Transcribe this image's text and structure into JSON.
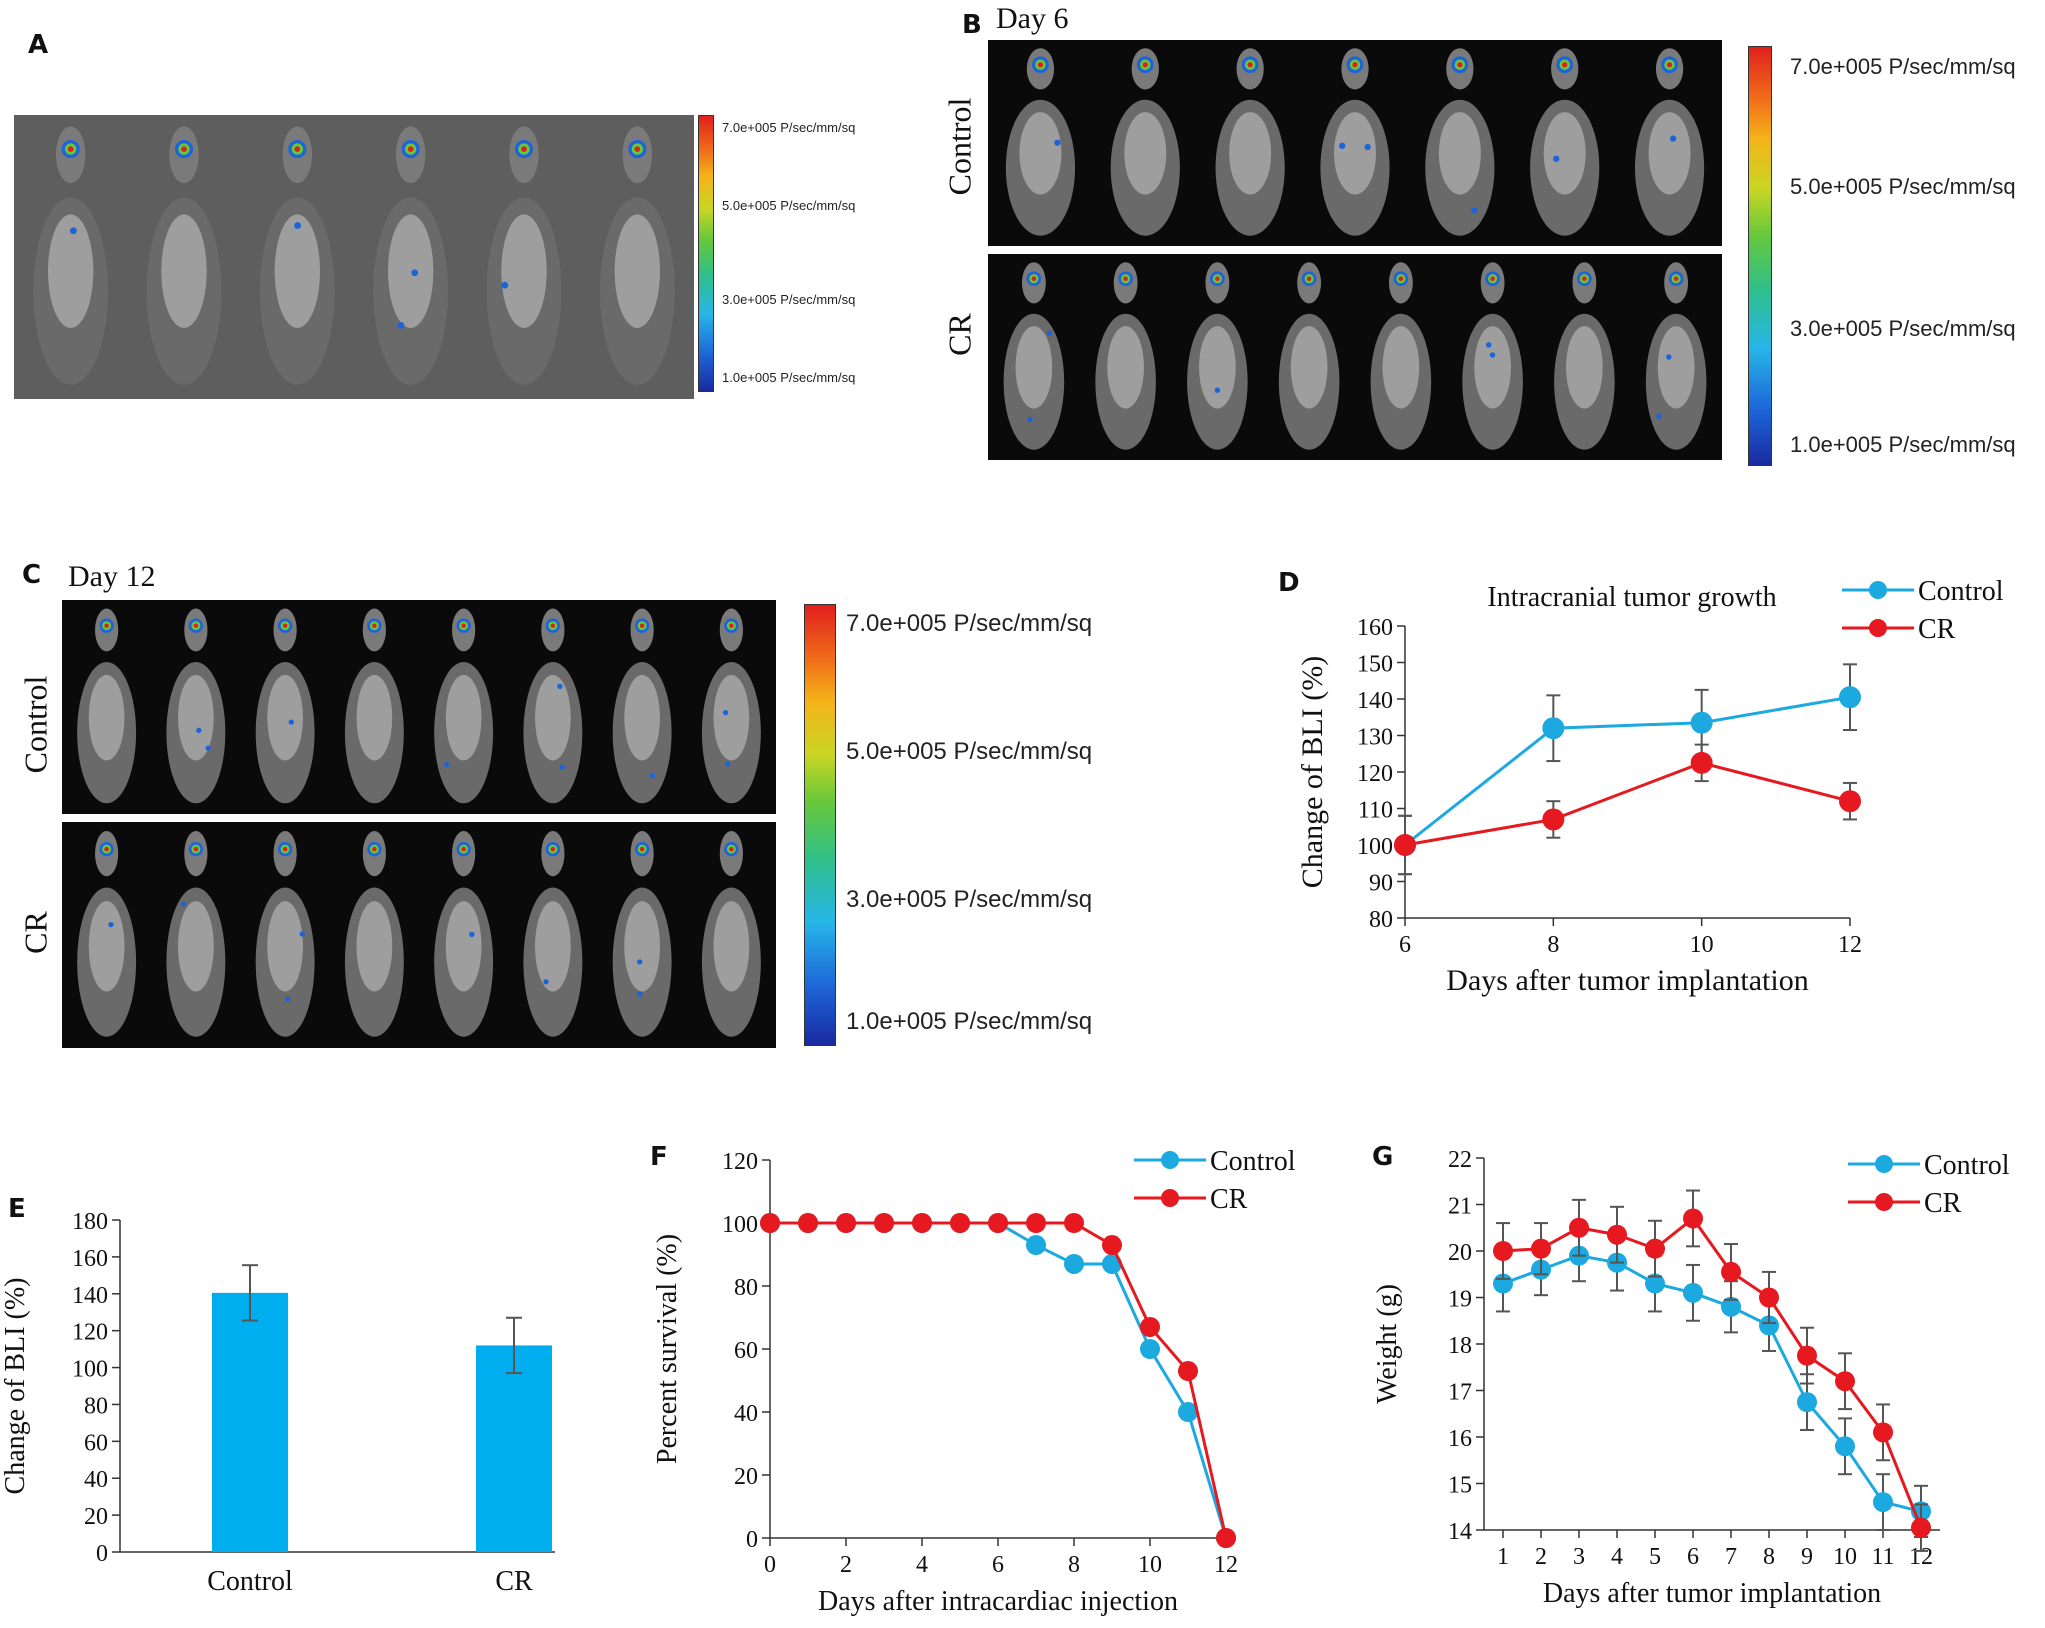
{
  "panel_letters": {
    "a": "A",
    "b": "B",
    "c": "C",
    "d": "D",
    "e": "E",
    "f": "F",
    "g": "G"
  },
  "panel_b": {
    "day": "Day 6",
    "row_top": "Control",
    "row_bottom": "CR"
  },
  "panel_c": {
    "day": "Day 12",
    "row_top": "Control",
    "row_bottom": "CR"
  },
  "colorbar_ticks": [
    "7.0e+005 P/sec/mm/sq",
    "5.0e+005 P/sec/mm/sq",
    "3.0e+005 P/sec/mm/sq",
    "1.0e+005 P/sec/mm/sq"
  ],
  "colors": {
    "control": "#1ba9e0",
    "cr": "#e5191f",
    "bar": "#00aeef",
    "error": "#555555"
  },
  "chart_data": [
    {
      "id": "D",
      "type": "line",
      "title": "Intracranial tumor growth",
      "xlabel": "Days after tumor implantation",
      "ylabel": "Change of BLI (%)",
      "x": [
        6,
        8,
        10,
        12
      ],
      "xlim": [
        6,
        12
      ],
      "ylim": [
        80,
        160
      ],
      "xticks": [
        "6",
        "8",
        "10",
        "12"
      ],
      "yticks": [
        "80",
        "90",
        "100",
        "110",
        "120",
        "130",
        "140",
        "150",
        "160"
      ],
      "legend": "top-right",
      "series": [
        {
          "name": "Control",
          "values": [
            100,
            132,
            133.5,
            140.5
          ],
          "errors": [
            8,
            9,
            9,
            9
          ]
        },
        {
          "name": "CR",
          "values": [
            100,
            107,
            122.5,
            112
          ],
          "errors": [
            8,
            5,
            5,
            5
          ]
        }
      ]
    },
    {
      "id": "E",
      "type": "bar",
      "xlabel": "",
      "ylabel": "Change of BLI (%)",
      "categories": [
        "Control",
        "CR"
      ],
      "values": [
        140.5,
        112
      ],
      "errors": [
        15,
        15
      ],
      "ylim": [
        0,
        180
      ],
      "yticks": [
        "0",
        "20",
        "40",
        "60",
        "80",
        "100",
        "120",
        "140",
        "160",
        "180"
      ]
    },
    {
      "id": "F",
      "type": "line",
      "xlabel": "Days after intracardiac injection",
      "ylabel": "Percent survival (%)",
      "x": [
        0,
        1,
        2,
        3,
        4,
        5,
        6,
        7,
        8,
        9,
        10,
        11,
        12
      ],
      "xlim": [
        0,
        12
      ],
      "ylim": [
        0,
        120
      ],
      "xticks": [
        "0",
        "2",
        "4",
        "6",
        "8",
        "10",
        "12"
      ],
      "yticks": [
        "0",
        "20",
        "40",
        "60",
        "80",
        "100",
        "120"
      ],
      "legend": "top-right",
      "series": [
        {
          "name": "Control",
          "values": [
            100,
            100,
            100,
            100,
            100,
            100,
            100,
            93,
            87,
            87,
            60,
            40,
            0
          ]
        },
        {
          "name": "CR",
          "values": [
            100,
            100,
            100,
            100,
            100,
            100,
            100,
            100,
            100,
            93,
            67,
            53,
            0
          ]
        }
      ]
    },
    {
      "id": "G",
      "type": "line",
      "xlabel": "Days after tumor implantation",
      "ylabel": "Weight (g)",
      "x": [
        1,
        2,
        3,
        4,
        5,
        6,
        7,
        8,
        9,
        10,
        11,
        12
      ],
      "xlim": [
        0.5,
        12.5
      ],
      "ylim": [
        14,
        22
      ],
      "xticks": [
        "1",
        "2",
        "3",
        "4",
        "5",
        "6",
        "7",
        "8",
        "9",
        "10",
        "11",
        "12"
      ],
      "yticks": [
        "14",
        "15",
        "16",
        "17",
        "18",
        "19",
        "20",
        "21",
        "22"
      ],
      "legend": "top-right",
      "series": [
        {
          "name": "Control",
          "values": [
            19.3,
            19.6,
            19.9,
            19.75,
            19.3,
            19.1,
            18.8,
            18.4,
            16.75,
            15.8,
            14.6,
            14.4
          ],
          "errors": [
            0.6,
            0.55,
            0.55,
            0.6,
            0.6,
            0.6,
            0.55,
            0.55,
            0.6,
            0.6,
            0.6,
            0.55
          ]
        },
        {
          "name": "CR",
          "values": [
            20.0,
            20.05,
            20.5,
            20.35,
            20.05,
            20.7,
            19.55,
            19.0,
            17.75,
            17.2,
            16.1,
            14.05
          ],
          "errors": [
            0.6,
            0.55,
            0.6,
            0.6,
            0.6,
            0.6,
            0.6,
            0.55,
            0.6,
            0.6,
            0.6,
            0.5
          ]
        }
      ]
    }
  ]
}
